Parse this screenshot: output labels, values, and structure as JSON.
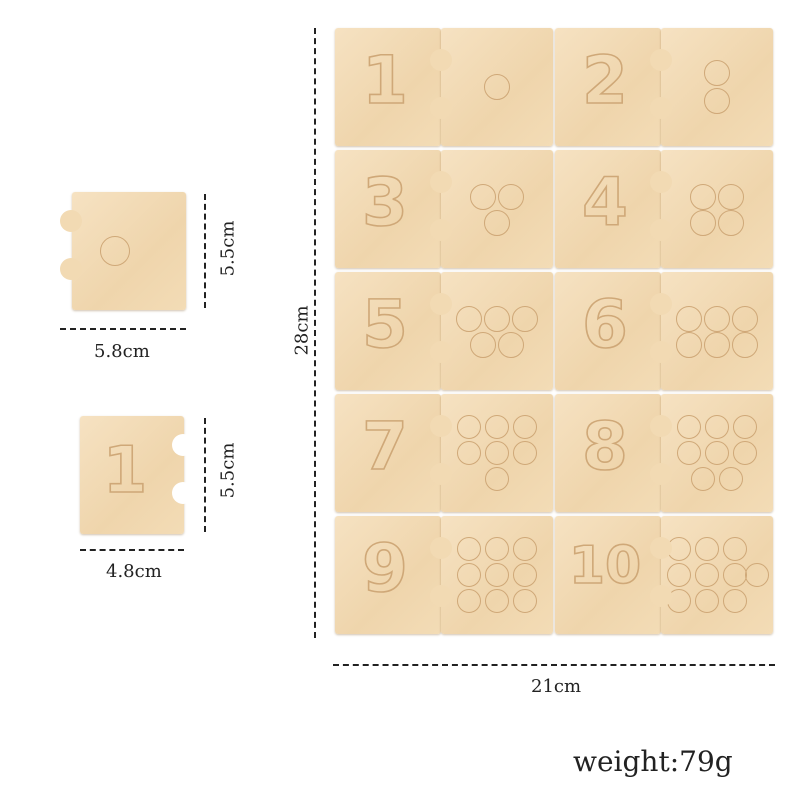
{
  "pieces": [
    {
      "number": "1",
      "dots": 1
    },
    {
      "number": "2",
      "dots": 2
    },
    {
      "number": "3",
      "dots": 3
    },
    {
      "number": "4",
      "dots": 4
    },
    {
      "number": "5",
      "dots": 5
    },
    {
      "number": "6",
      "dots": 6
    },
    {
      "number": "7",
      "dots": 7
    },
    {
      "number": "8",
      "dots": 8
    },
    {
      "number": "9",
      "dots": 9
    },
    {
      "number": "10",
      "dots": 10
    }
  ],
  "sample_dot_piece": {
    "dots": 1,
    "width_label": "5.8cm",
    "height_label": "5.5cm"
  },
  "sample_number_piece": {
    "number": "1",
    "width_label": "4.8cm",
    "height_label": "5.5cm"
  },
  "board": {
    "height_label": "28cm",
    "width_label": "21cm"
  },
  "weight_label": "weight:79g",
  "colors": {
    "wood": "#f0d8b0",
    "engraving": "#cfa878",
    "dimension_lines": "#222222"
  }
}
